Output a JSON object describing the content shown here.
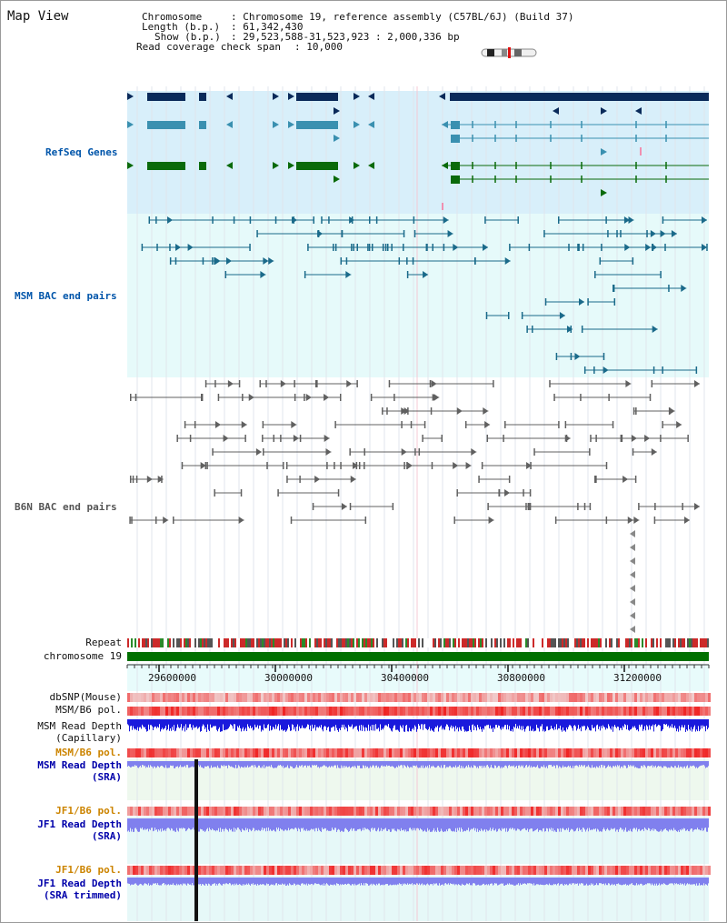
{
  "page": {
    "title": "Map View"
  },
  "header": {
    "chromosome_key": "Chromosome",
    "chromosome_val": ": Chromosome 19, reference assembly (C57BL/6J) (Build 37)",
    "length_key": "Length (b.p.)",
    "length_val": ": 61,342,430",
    "show_key": "Show (b.p.)",
    "show_val": ": 29,523,588-31,523,923 : 2,000,336 bp",
    "coverage_key": "Read coverage check span",
    "coverage_val": ": 10,000"
  },
  "bands": {
    "refseq": "RefSeq Genes",
    "msm_bac": "MSM BAC end pairs",
    "b6n_bac": "B6N BAC end pairs"
  },
  "tracks": {
    "repeat": "Repeat",
    "chromosome": "chromosome 19",
    "dbsnp": "dbSNP(Mouse)",
    "msm_b6_pol_1": "MSM/B6 pol.",
    "msm_read_depth_cap_1": "MSM Read Depth",
    "msm_read_depth_cap_2": "(Capillary)",
    "msm_b6_pol_2": "MSM/B6 pol.",
    "msm_read_depth_sra_1": "MSM Read Depth",
    "msm_read_depth_sra_2": "(SRA)",
    "jf1_b6_pol_1": "JF1/B6 pol.",
    "jf1_read_depth_sra_1": "JF1 Read Depth",
    "jf1_read_depth_sra_2": "(SRA)",
    "jf1_b6_pol_2": "JF1/B6 pol.",
    "jf1_read_depth_trim_1": "JF1 Read Depth",
    "jf1_read_depth_trim_2": "(SRA trimmed)"
  },
  "axis": {
    "ticks": [
      "29600000",
      "30000000",
      "30400000",
      "30800000",
      "31200000"
    ]
  },
  "colors": {
    "refseq_bg": "#d8effa",
    "bac_bg": "#e6fafa",
    "gene_navy": "#0a2a5a",
    "gene_teal": "#3a90b0",
    "gene_green": "#0a6a0a",
    "chromosome_green": "#007000",
    "depth_blue": "#1a1adc",
    "depth_light": "#8080ee",
    "pol_red": "#e02020"
  }
}
